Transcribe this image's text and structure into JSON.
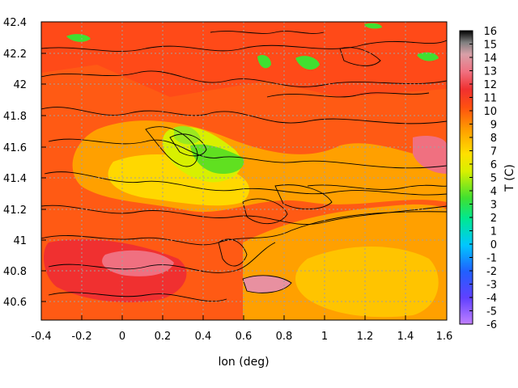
{
  "chart_data": {
    "type": "heatmap",
    "xlabel": "lon (deg)",
    "colorbar_label": "T (C)",
    "xlim": [
      -0.4,
      1.6
    ],
    "ylim": [
      40.5,
      42.4
    ],
    "x_ticks": [
      "-0.4",
      "-0.2",
      "0",
      "0.2",
      "0.4",
      "0.6",
      "0.8",
      "1",
      "1.2",
      "1.4",
      "1.6"
    ],
    "y_ticks": [
      "40.6",
      "40.8",
      "41",
      "41.2",
      "41.4",
      "41.6",
      "41.8",
      "42",
      "42.2",
      "42.4"
    ],
    "colorbar_ticks": [
      "16",
      "15",
      "14",
      "13",
      "12",
      "11",
      "10",
      "9",
      "8",
      "7",
      "6",
      "5",
      "4",
      "3",
      "2",
      "1",
      "0",
      "-1",
      "-2",
      "-3",
      "-4",
      "-5",
      "-6"
    ],
    "colorbar_range": [
      -6,
      16
    ],
    "grid": true,
    "contours": true
  }
}
